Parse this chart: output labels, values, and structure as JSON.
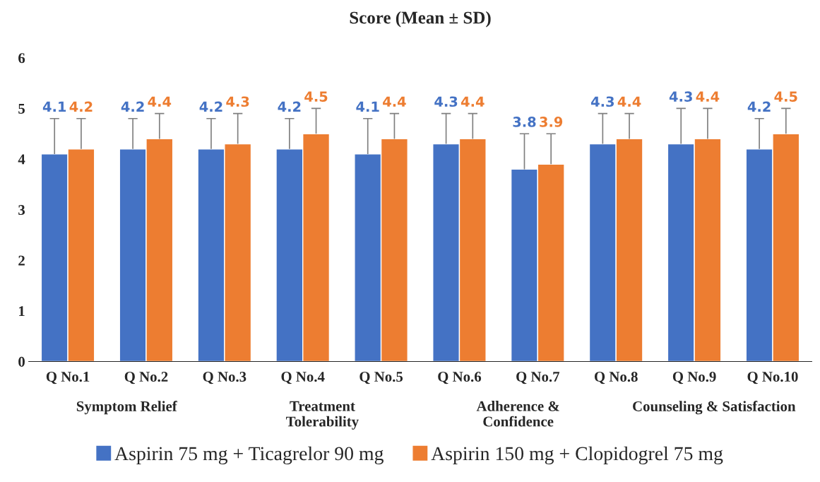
{
  "chart_data": {
    "type": "bar",
    "title": "Score (Mean ± SD)",
    "categories": [
      "Q No.1",
      "Q No.2",
      "Q No.3",
      "Q No.4",
      "Q No.5",
      "Q No.6",
      "Q No.7",
      "Q No.8",
      "Q No.9",
      "Q No.10"
    ],
    "series": [
      {
        "name": "Aspirin 75 mg + Ticagrelor 90 mg",
        "color": "#4472c4",
        "values": [
          4.1,
          4.2,
          4.2,
          4.2,
          4.1,
          4.3,
          3.8,
          4.3,
          4.3,
          4.2
        ],
        "errors": [
          [
            4.1,
            4.8
          ],
          [
            4.2,
            4.8
          ],
          [
            4.2,
            4.8
          ],
          [
            4.2,
            4.8
          ],
          [
            4.1,
            4.8
          ],
          [
            4.3,
            4.9
          ],
          [
            3.8,
            4.5
          ],
          [
            4.3,
            4.9
          ],
          [
            4.3,
            5.0
          ],
          [
            4.2,
            4.8
          ]
        ]
      },
      {
        "name": "Aspirin 150 mg + Clopidogrel 75 mg",
        "color": "#ed7d31",
        "values": [
          4.2,
          4.4,
          4.3,
          4.5,
          4.4,
          4.4,
          3.9,
          4.4,
          4.4,
          4.5
        ],
        "errors": [
          [
            4.2,
            4.8
          ],
          [
            4.4,
            4.9
          ],
          [
            4.3,
            4.9
          ],
          [
            4.5,
            5.0
          ],
          [
            4.4,
            4.9
          ],
          [
            4.4,
            4.9
          ],
          [
            3.9,
            4.5
          ],
          [
            4.4,
            4.9
          ],
          [
            4.4,
            5.0
          ],
          [
            4.5,
            5.0
          ]
        ]
      }
    ],
    "annotations": [
      "Symptom Relief",
      "Treatment\nTolerability",
      "Adherence &\nConfidence",
      "Counseling & Satisfaction"
    ],
    "ylim": [
      0,
      6
    ],
    "yticks": [
      0,
      1,
      2,
      3,
      4,
      5,
      6
    ],
    "data_labels": true,
    "grid": false,
    "legend": "bottom"
  }
}
